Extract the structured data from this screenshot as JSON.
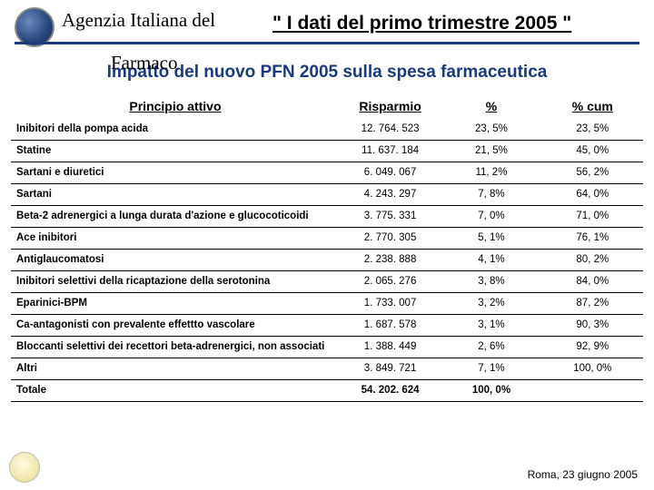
{
  "header": {
    "agency_line1": "Agenzia Italiana del",
    "agency_line2": "Farmaco",
    "title_quote": "\" I dati del primo trimestre 2005 \"",
    "subtitle": "Impatto del nuovo PFN 2005 sulla spesa farmaceutica"
  },
  "table": {
    "columns": {
      "principio": "Principio attivo",
      "risparmio": "Risparmio",
      "pct": "%",
      "pct_cum": "% cum"
    },
    "rows": [
      {
        "principio": "Inibitori della pompa acida",
        "risparmio": "12. 764. 523",
        "pct": "23, 5%",
        "pct_cum": "23, 5%"
      },
      {
        "principio": "Statine",
        "risparmio": "11. 637. 184",
        "pct": "21, 5%",
        "pct_cum": "45, 0%"
      },
      {
        "principio": "Sartani e diuretici",
        "risparmio": "6. 049. 067",
        "pct": "11, 2%",
        "pct_cum": "56, 2%"
      },
      {
        "principio": "Sartani",
        "risparmio": "4. 243. 297",
        "pct": "7, 8%",
        "pct_cum": "64, 0%"
      },
      {
        "principio": "Beta-2 adrenergici a lunga durata d'azione e glucocoticoidi",
        "risparmio": "3. 775. 331",
        "pct": "7, 0%",
        "pct_cum": "71, 0%"
      },
      {
        "principio": "Ace inibitori",
        "risparmio": "2. 770. 305",
        "pct": "5, 1%",
        "pct_cum": "76, 1%"
      },
      {
        "principio": "Antiglaucomatosi",
        "risparmio": "2. 238. 888",
        "pct": "4, 1%",
        "pct_cum": "80, 2%"
      },
      {
        "principio": "Inibitori selettivi della ricaptazione della serotonina",
        "risparmio": "2. 065. 276",
        "pct": "3, 8%",
        "pct_cum": "84, 0%"
      },
      {
        "principio": "Eparinici-BPM",
        "risparmio": "1. 733. 007",
        "pct": "3, 2%",
        "pct_cum": "87, 2%"
      },
      {
        "principio": "Ca-antagonisti con prevalente effettto vascolare",
        "risparmio": "1. 687. 578",
        "pct": "3, 1%",
        "pct_cum": "90, 3%"
      },
      {
        "principio": "Bloccanti selettivi dei recettori beta-adrenergici, non associati",
        "risparmio": "1. 388. 449",
        "pct": "2, 6%",
        "pct_cum": "92, 9%"
      },
      {
        "principio": "Altri",
        "risparmio": "3. 849. 721",
        "pct": "7, 1%",
        "pct_cum": "100, 0%"
      }
    ],
    "total": {
      "principio": "Totale",
      "risparmio": "54. 202. 624",
      "pct": "100, 0%",
      "pct_cum": ""
    }
  },
  "footer": {
    "location_date": "Roma, 23 giugno 2005"
  },
  "colors": {
    "rule": "#1a3a7a",
    "subtitle": "#1a3a7a",
    "text": "#000000",
    "background": "#ffffff"
  }
}
